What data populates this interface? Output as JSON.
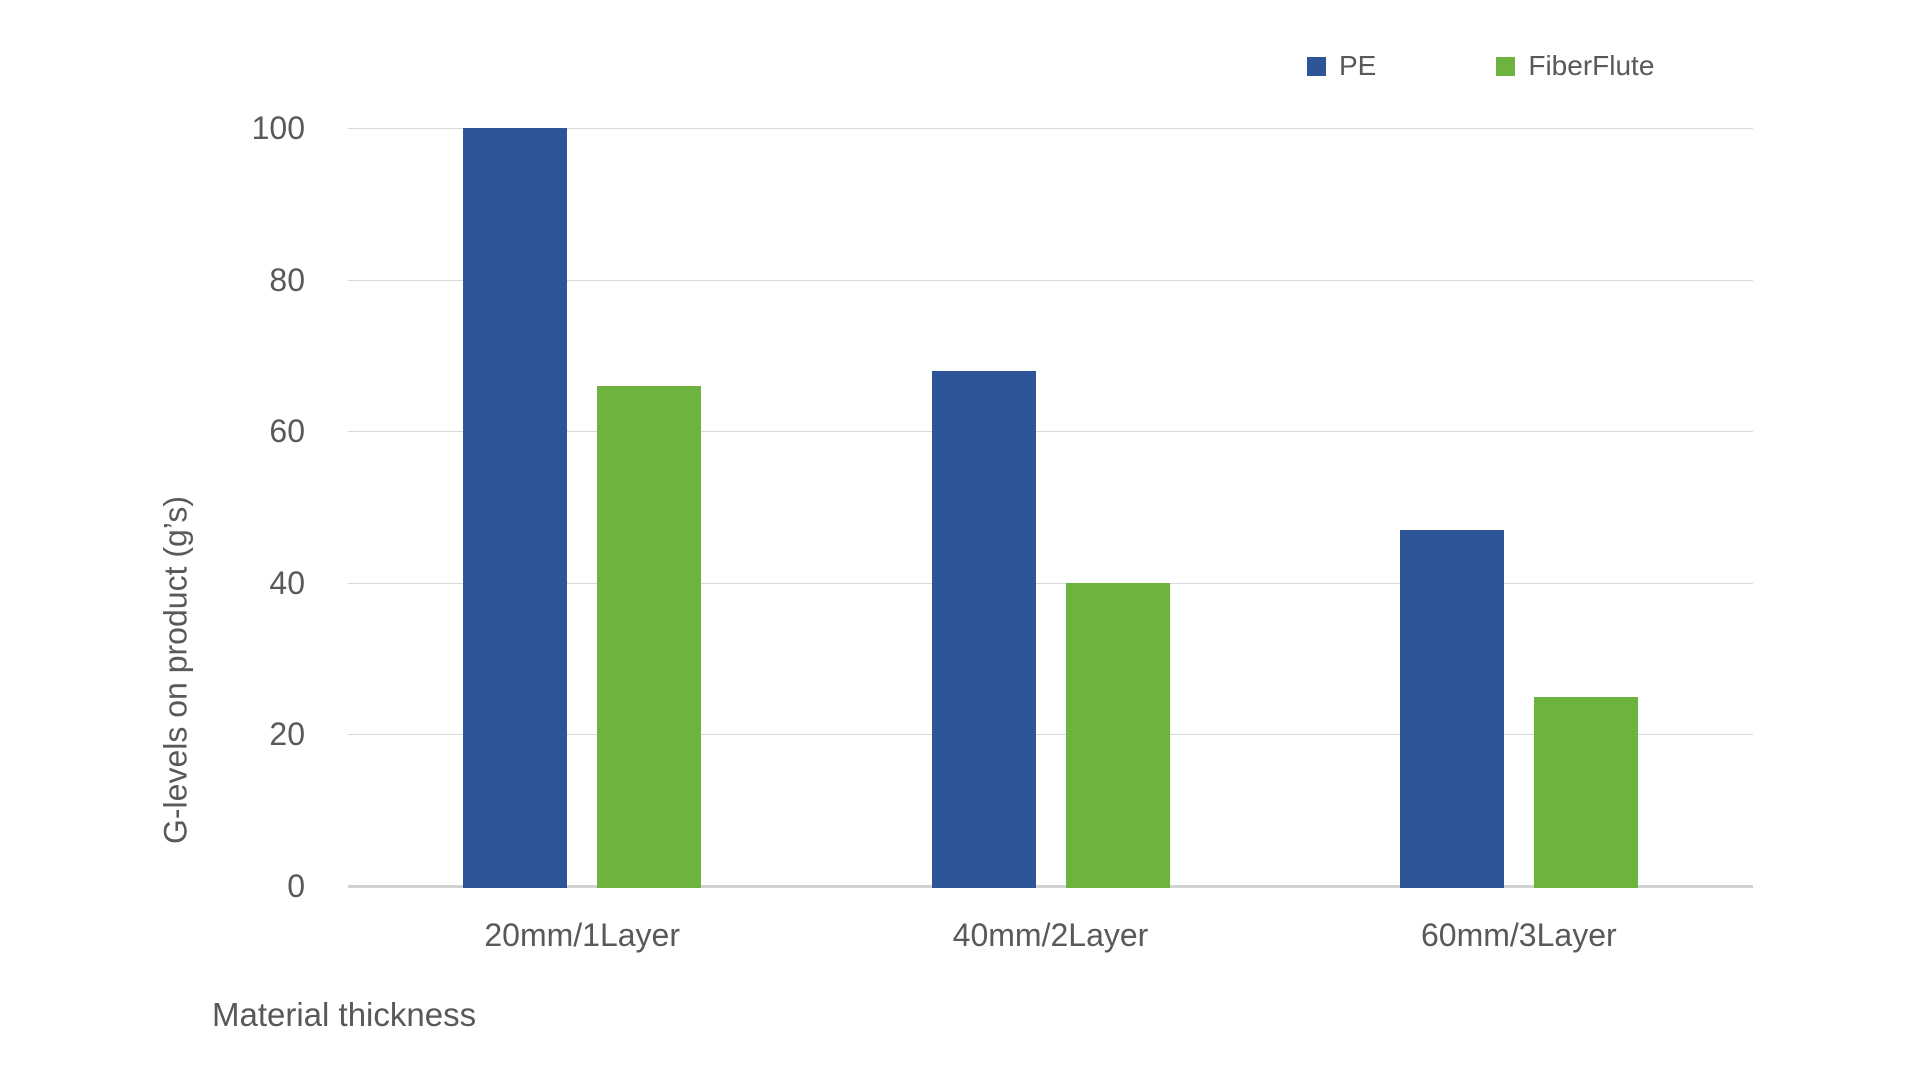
{
  "chart_data": {
    "type": "bar",
    "categories": [
      "20mm/1Layer",
      "40mm/2Layer",
      "60mm/3Layer"
    ],
    "series": [
      {
        "name": "PE",
        "color": "#2E5597",
        "values": [
          100,
          68,
          47
        ]
      },
      {
        "name": "FiberFlute",
        "color": "#6CB43F",
        "values": [
          66,
          40,
          25
        ]
      }
    ],
    "xlabel": "Material thickness",
    "ylabel": "G-levels on product (g’s)",
    "ylim": [
      0,
      100
    ],
    "yticks": [
      0,
      20,
      40,
      60,
      80,
      100
    ],
    "grid": true,
    "legend_position": "top-right",
    "colors": {
      "background": "#FFFFFF",
      "text": "#595959",
      "gridline": "#D9D9D9",
      "axis_line": "#D2D2D2"
    }
  }
}
